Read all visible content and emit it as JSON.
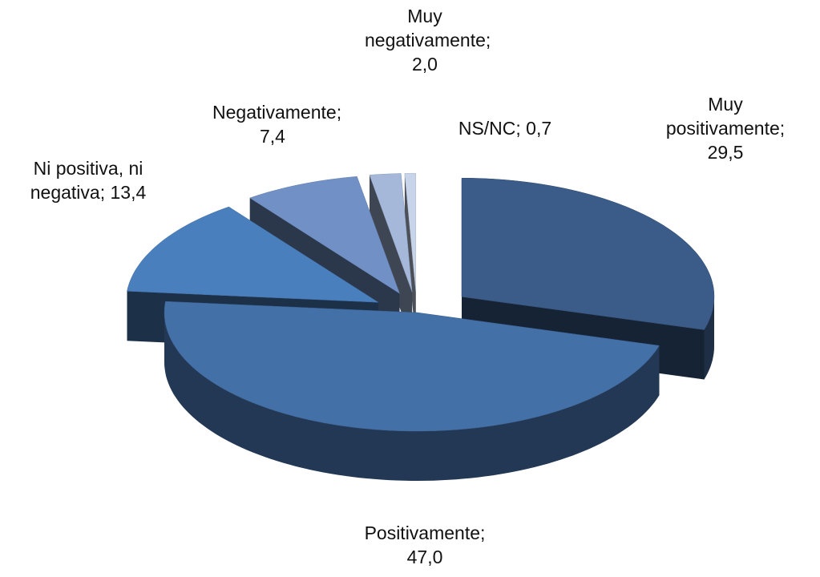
{
  "chart_data": {
    "type": "pie3d",
    "categories": [
      "Muy positivamente",
      "Positivamente",
      "Ni positiva, ni negativa",
      "Negativamente",
      "Muy negativamente",
      "NS/NC"
    ],
    "values": [
      29.5,
      47.0,
      13.4,
      7.4,
      2.0,
      0.7
    ],
    "value_labels": [
      "29,5",
      "47,0",
      "13,4",
      "7,4",
      "2,0",
      "0,7"
    ],
    "colors": [
      "#3b5b88",
      "#4470a8",
      "#4a7fbe",
      "#7191c6",
      "#a5b8da",
      "#c8d4ea"
    ]
  }
}
